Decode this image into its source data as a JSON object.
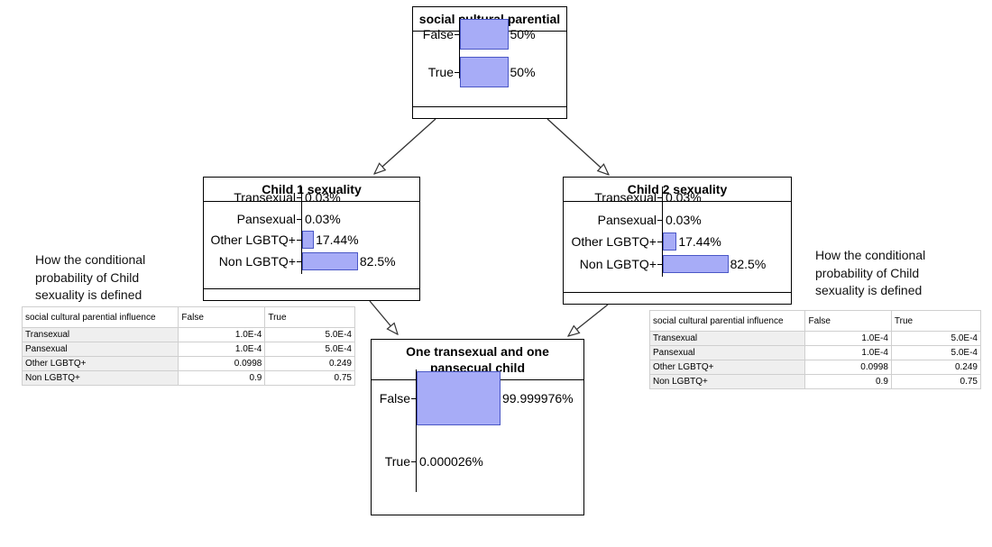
{
  "nodes": {
    "parental": {
      "title": "social cultural parential",
      "states": [
        {
          "label": "False",
          "prob": 0.5,
          "pct_text": "50%"
        },
        {
          "label": "True",
          "prob": 0.5,
          "pct_text": "50%"
        }
      ]
    },
    "child1": {
      "title": "Child 1 sexuality",
      "states": [
        {
          "label": "Transexual",
          "prob": 0.0003,
          "pct_text": "0.03%"
        },
        {
          "label": "Pansexual",
          "prob": 0.0003,
          "pct_text": "0.03%"
        },
        {
          "label": "Other LGBTQ+",
          "prob": 0.1744,
          "pct_text": "17.44%"
        },
        {
          "label": "Non LGBTQ+",
          "prob": 0.825,
          "pct_text": "82.5%"
        }
      ]
    },
    "child2": {
      "title": "Child 2 sexuality",
      "states": [
        {
          "label": "Transexual",
          "prob": 0.0003,
          "pct_text": "0.03%"
        },
        {
          "label": "Pansexual",
          "prob": 0.0003,
          "pct_text": "0.03%"
        },
        {
          "label": "Other LGBTQ+",
          "prob": 0.1744,
          "pct_text": "17.44%"
        },
        {
          "label": "Non LGBTQ+",
          "prob": 0.825,
          "pct_text": "82.5%"
        }
      ]
    },
    "outcome": {
      "title": "One transexual and one pansecual child",
      "states": [
        {
          "label": "False",
          "prob": 0.99999976,
          "pct_text": "99.999976%"
        },
        {
          "label": "True",
          "prob": 2.6e-07,
          "pct_text": "0.000026%"
        }
      ]
    }
  },
  "notes": {
    "left": "How the conditional probability of Child sexuality is defined",
    "right": "How the conditional probability of Child sexuality is defined"
  },
  "cpt": {
    "header": [
      "social cultural parential influence",
      "False",
      "True"
    ],
    "rows": [
      {
        "label": "Transexual",
        "false": "1.0E-4",
        "true": "5.0E-4"
      },
      {
        "label": "Pansexual",
        "false": "1.0E-4",
        "true": "5.0E-4"
      },
      {
        "label": "Other LGBTQ+",
        "false": "0.0998",
        "true": "0.249"
      },
      {
        "label": "Non LGBTQ+",
        "false": "0.9",
        "true": "0.75"
      }
    ]
  },
  "colors": {
    "bar_fill": "#a7acf7",
    "bar_border": "#4a57c6",
    "edge": "#333333"
  }
}
